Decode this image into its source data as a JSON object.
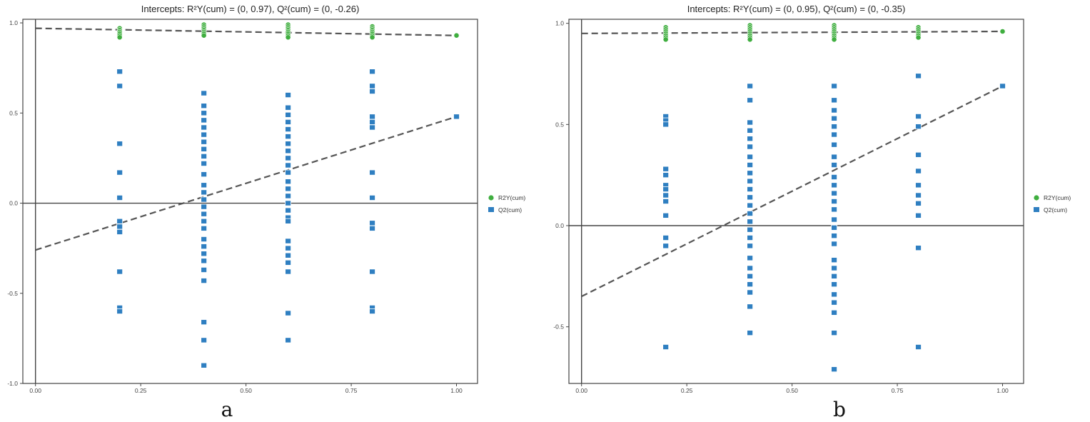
{
  "colors": {
    "r2y": "#3fae3f",
    "q2": "#2f7fc1",
    "regression": "#555555",
    "frame": "#444444"
  },
  "legend": {
    "r2y_label": "R2Y(cum)",
    "q2_label": "Q2(cum)"
  },
  "chart_data": [
    {
      "type": "scatter",
      "panel_label": "a",
      "title": "Intercepts: R²Y(cum) = (0, 0.97), Q²(cum) = (0, -0.26)",
      "xlim": [
        -0.03,
        1.05
      ],
      "ylim": [
        -1.0,
        1.02
      ],
      "xticks": [
        0.0,
        0.25,
        0.5,
        0.75,
        1.0
      ],
      "xtick_labels": [
        "0.00",
        "0.25",
        "0.50",
        "0.75",
        "1.00"
      ],
      "yticks": [
        -1.0,
        -0.5,
        0.0,
        0.5,
        1.0
      ],
      "ytick_labels": [
        "-1.0",
        "-0.5",
        "0.0",
        "0.5",
        "1.0"
      ],
      "grid": false,
      "legend_position": "right",
      "series": [
        {
          "name": "R2Y(cum)",
          "marker": "circle",
          "points": [
            [
              0.2,
              0.97
            ],
            [
              0.2,
              0.96
            ],
            [
              0.2,
              0.95
            ],
            [
              0.2,
              0.94
            ],
            [
              0.2,
              0.93
            ],
            [
              0.2,
              0.92
            ],
            [
              0.4,
              0.99
            ],
            [
              0.4,
              0.98
            ],
            [
              0.4,
              0.97
            ],
            [
              0.4,
              0.96
            ],
            [
              0.4,
              0.95
            ],
            [
              0.4,
              0.94
            ],
            [
              0.4,
              0.93
            ],
            [
              0.6,
              0.99
            ],
            [
              0.6,
              0.98
            ],
            [
              0.6,
              0.97
            ],
            [
              0.6,
              0.96
            ],
            [
              0.6,
              0.95
            ],
            [
              0.6,
              0.94
            ],
            [
              0.6,
              0.93
            ],
            [
              0.6,
              0.92
            ],
            [
              0.8,
              0.98
            ],
            [
              0.8,
              0.97
            ],
            [
              0.8,
              0.96
            ],
            [
              0.8,
              0.95
            ],
            [
              0.8,
              0.94
            ],
            [
              0.8,
              0.93
            ],
            [
              0.8,
              0.92
            ],
            [
              1.0,
              0.93
            ]
          ]
        },
        {
          "name": "Q2(cum)",
          "marker": "square",
          "points": [
            [
              0.2,
              0.73
            ],
            [
              0.2,
              0.65
            ],
            [
              0.2,
              0.33
            ],
            [
              0.2,
              0.17
            ],
            [
              0.2,
              0.03
            ],
            [
              0.2,
              -0.1
            ],
            [
              0.2,
              -0.13
            ],
            [
              0.2,
              -0.16
            ],
            [
              0.2,
              -0.38
            ],
            [
              0.2,
              -0.58
            ],
            [
              0.2,
              -0.6
            ],
            [
              0.4,
              0.61
            ],
            [
              0.4,
              0.54
            ],
            [
              0.4,
              0.5
            ],
            [
              0.4,
              0.46
            ],
            [
              0.4,
              0.42
            ],
            [
              0.4,
              0.38
            ],
            [
              0.4,
              0.34
            ],
            [
              0.4,
              0.3
            ],
            [
              0.4,
              0.26
            ],
            [
              0.4,
              0.22
            ],
            [
              0.4,
              0.16
            ],
            [
              0.4,
              0.1
            ],
            [
              0.4,
              0.06
            ],
            [
              0.4,
              0.02
            ],
            [
              0.4,
              -0.02
            ],
            [
              0.4,
              -0.06
            ],
            [
              0.4,
              -0.1
            ],
            [
              0.4,
              -0.14
            ],
            [
              0.4,
              -0.2
            ],
            [
              0.4,
              -0.24
            ],
            [
              0.4,
              -0.28
            ],
            [
              0.4,
              -0.32
            ],
            [
              0.4,
              -0.37
            ],
            [
              0.4,
              -0.43
            ],
            [
              0.4,
              -0.66
            ],
            [
              0.4,
              -0.76
            ],
            [
              0.4,
              -0.9
            ],
            [
              0.6,
              0.6
            ],
            [
              0.6,
              0.53
            ],
            [
              0.6,
              0.49
            ],
            [
              0.6,
              0.45
            ],
            [
              0.6,
              0.41
            ],
            [
              0.6,
              0.37
            ],
            [
              0.6,
              0.33
            ],
            [
              0.6,
              0.29
            ],
            [
              0.6,
              0.25
            ],
            [
              0.6,
              0.21
            ],
            [
              0.6,
              0.17
            ],
            [
              0.6,
              0.12
            ],
            [
              0.6,
              0.08
            ],
            [
              0.6,
              0.04
            ],
            [
              0.6,
              0.0
            ],
            [
              0.6,
              -0.04
            ],
            [
              0.6,
              -0.08
            ],
            [
              0.6,
              -0.1
            ],
            [
              0.6,
              -0.21
            ],
            [
              0.6,
              -0.25
            ],
            [
              0.6,
              -0.29
            ],
            [
              0.6,
              -0.33
            ],
            [
              0.6,
              -0.38
            ],
            [
              0.6,
              -0.61
            ],
            [
              0.6,
              -0.76
            ],
            [
              0.8,
              0.73
            ],
            [
              0.8,
              0.65
            ],
            [
              0.8,
              0.62
            ],
            [
              0.8,
              0.48
            ],
            [
              0.8,
              0.45
            ],
            [
              0.8,
              0.42
            ],
            [
              0.8,
              0.17
            ],
            [
              0.8,
              0.03
            ],
            [
              0.8,
              -0.11
            ],
            [
              0.8,
              -0.14
            ],
            [
              0.8,
              -0.38
            ],
            [
              0.8,
              -0.58
            ],
            [
              0.8,
              -0.6
            ],
            [
              1.0,
              0.48
            ]
          ]
        }
      ],
      "regression_lines": [
        {
          "name": "R2Y(cum)",
          "intercept": 0.97,
          "slope": -0.04
        },
        {
          "name": "Q2(cum)",
          "intercept": -0.26,
          "slope": 0.74
        }
      ]
    },
    {
      "type": "scatter",
      "panel_label": "b",
      "title": "Intercepts: R²Y(cum) = (0, 0.95), Q²(cum) = (0, -0.35)",
      "xlim": [
        -0.03,
        1.05
      ],
      "ylim": [
        -0.78,
        1.02
      ],
      "xticks": [
        0.0,
        0.25,
        0.5,
        0.75,
        1.0
      ],
      "xtick_labels": [
        "0.00",
        "0.25",
        "0.50",
        "0.75",
        "1.00"
      ],
      "yticks": [
        -0.5,
        0.0,
        0.5,
        1.0
      ],
      "ytick_labels": [
        "-0.5",
        "0.0",
        "0.5",
        "1.0"
      ],
      "grid": false,
      "legend_position": "right",
      "series": [
        {
          "name": "R2Y(cum)",
          "marker": "circle",
          "points": [
            [
              0.2,
              0.98
            ],
            [
              0.2,
              0.97
            ],
            [
              0.2,
              0.96
            ],
            [
              0.2,
              0.95
            ],
            [
              0.2,
              0.94
            ],
            [
              0.2,
              0.93
            ],
            [
              0.2,
              0.92
            ],
            [
              0.4,
              0.99
            ],
            [
              0.4,
              0.98
            ],
            [
              0.4,
              0.97
            ],
            [
              0.4,
              0.96
            ],
            [
              0.4,
              0.95
            ],
            [
              0.4,
              0.94
            ],
            [
              0.4,
              0.93
            ],
            [
              0.4,
              0.92
            ],
            [
              0.6,
              0.99
            ],
            [
              0.6,
              0.98
            ],
            [
              0.6,
              0.97
            ],
            [
              0.6,
              0.96
            ],
            [
              0.6,
              0.95
            ],
            [
              0.6,
              0.94
            ],
            [
              0.6,
              0.93
            ],
            [
              0.6,
              0.92
            ],
            [
              0.8,
              0.98
            ],
            [
              0.8,
              0.97
            ],
            [
              0.8,
              0.96
            ],
            [
              0.8,
              0.95
            ],
            [
              0.8,
              0.94
            ],
            [
              0.8,
              0.93
            ],
            [
              1.0,
              0.96
            ]
          ]
        },
        {
          "name": "Q2(cum)",
          "marker": "square",
          "points": [
            [
              0.2,
              0.54
            ],
            [
              0.2,
              0.52
            ],
            [
              0.2,
              0.5
            ],
            [
              0.2,
              0.28
            ],
            [
              0.2,
              0.25
            ],
            [
              0.2,
              0.2
            ],
            [
              0.2,
              0.18
            ],
            [
              0.2,
              0.15
            ],
            [
              0.2,
              0.12
            ],
            [
              0.2,
              0.05
            ],
            [
              0.2,
              -0.06
            ],
            [
              0.2,
              -0.1
            ],
            [
              0.2,
              -0.6
            ],
            [
              0.4,
              0.69
            ],
            [
              0.4,
              0.62
            ],
            [
              0.4,
              0.51
            ],
            [
              0.4,
              0.47
            ],
            [
              0.4,
              0.43
            ],
            [
              0.4,
              0.39
            ],
            [
              0.4,
              0.34
            ],
            [
              0.4,
              0.3
            ],
            [
              0.4,
              0.26
            ],
            [
              0.4,
              0.22
            ],
            [
              0.4,
              0.18
            ],
            [
              0.4,
              0.14
            ],
            [
              0.4,
              0.1
            ],
            [
              0.4,
              0.06
            ],
            [
              0.4,
              0.02
            ],
            [
              0.4,
              -0.02
            ],
            [
              0.4,
              -0.06
            ],
            [
              0.4,
              -0.1
            ],
            [
              0.4,
              -0.16
            ],
            [
              0.4,
              -0.21
            ],
            [
              0.4,
              -0.25
            ],
            [
              0.4,
              -0.29
            ],
            [
              0.4,
              -0.33
            ],
            [
              0.4,
              -0.4
            ],
            [
              0.4,
              -0.53
            ],
            [
              0.6,
              0.69
            ],
            [
              0.6,
              0.62
            ],
            [
              0.6,
              0.57
            ],
            [
              0.6,
              0.53
            ],
            [
              0.6,
              0.49
            ],
            [
              0.6,
              0.45
            ],
            [
              0.6,
              0.4
            ],
            [
              0.6,
              0.34
            ],
            [
              0.6,
              0.3
            ],
            [
              0.6,
              0.24
            ],
            [
              0.6,
              0.2
            ],
            [
              0.6,
              0.16
            ],
            [
              0.6,
              0.12
            ],
            [
              0.6,
              0.08
            ],
            [
              0.6,
              0.03
            ],
            [
              0.6,
              -0.01
            ],
            [
              0.6,
              -0.05
            ],
            [
              0.6,
              -0.09
            ],
            [
              0.6,
              -0.17
            ],
            [
              0.6,
              -0.21
            ],
            [
              0.6,
              -0.25
            ],
            [
              0.6,
              -0.29
            ],
            [
              0.6,
              -0.34
            ],
            [
              0.6,
              -0.38
            ],
            [
              0.6,
              -0.43
            ],
            [
              0.6,
              -0.53
            ],
            [
              0.6,
              -0.71
            ],
            [
              0.8,
              0.74
            ],
            [
              0.8,
              0.54
            ],
            [
              0.8,
              0.49
            ],
            [
              0.8,
              0.35
            ],
            [
              0.8,
              0.27
            ],
            [
              0.8,
              0.2
            ],
            [
              0.8,
              0.15
            ],
            [
              0.8,
              0.11
            ],
            [
              0.8,
              0.05
            ],
            [
              0.8,
              -0.11
            ],
            [
              0.8,
              -0.6
            ],
            [
              1.0,
              0.69
            ]
          ]
        }
      ],
      "regression_lines": [
        {
          "name": "R2Y(cum)",
          "intercept": 0.95,
          "slope": 0.01
        },
        {
          "name": "Q2(cum)",
          "intercept": -0.35,
          "slope": 1.04
        }
      ]
    }
  ]
}
